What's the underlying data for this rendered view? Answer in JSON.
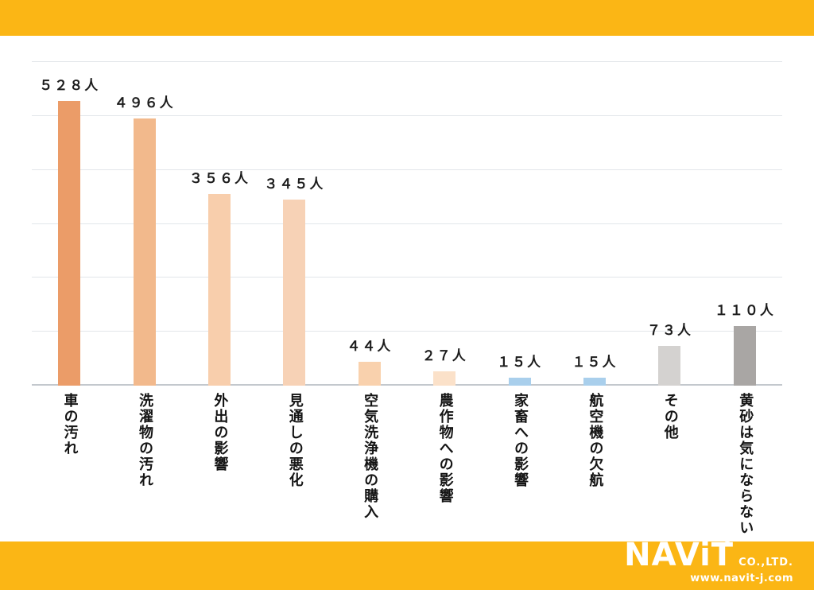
{
  "chart_data": {
    "type": "bar",
    "title": "",
    "xlabel": "",
    "ylabel": "",
    "categories": [
      "車の汚れ",
      "洗濯物の汚れ",
      "外出の影響",
      "見通しの悪化",
      "空気洗浄機の購入",
      "農作物への影響",
      "家畜への影響",
      "航空機の欠航",
      "その他",
      "黄砂は気にならない"
    ],
    "values": [
      528,
      496,
      356,
      345,
      44,
      27,
      15,
      15,
      73,
      110
    ],
    "value_labels": [
      "５２８人",
      "４９６人",
      "３５６人",
      "３４５人",
      "４４人",
      "２７人",
      "１５人",
      "１５人",
      "７３人",
      "１１０人"
    ],
    "bar_colors": [
      "#eb9c68",
      "#f2b98c",
      "#f8ceac",
      "#f7d2b6",
      "#f9d1ad",
      "#fbe1c9",
      "#a9cfec",
      "#a9cfec",
      "#d4d2d0",
      "#a9a6a4"
    ],
    "ylim": [
      0,
      600
    ],
    "gridline_interval": 100,
    "grid": true,
    "legend_position": "none"
  },
  "theme": {
    "band_color": "#fbb615",
    "background": "#ffffff",
    "gridline_color": "#e2e6ea"
  },
  "footer": {
    "logo_main": "NAViT",
    "logo_sub": "CO.,LTD.",
    "website": "www.navit-j.com"
  }
}
